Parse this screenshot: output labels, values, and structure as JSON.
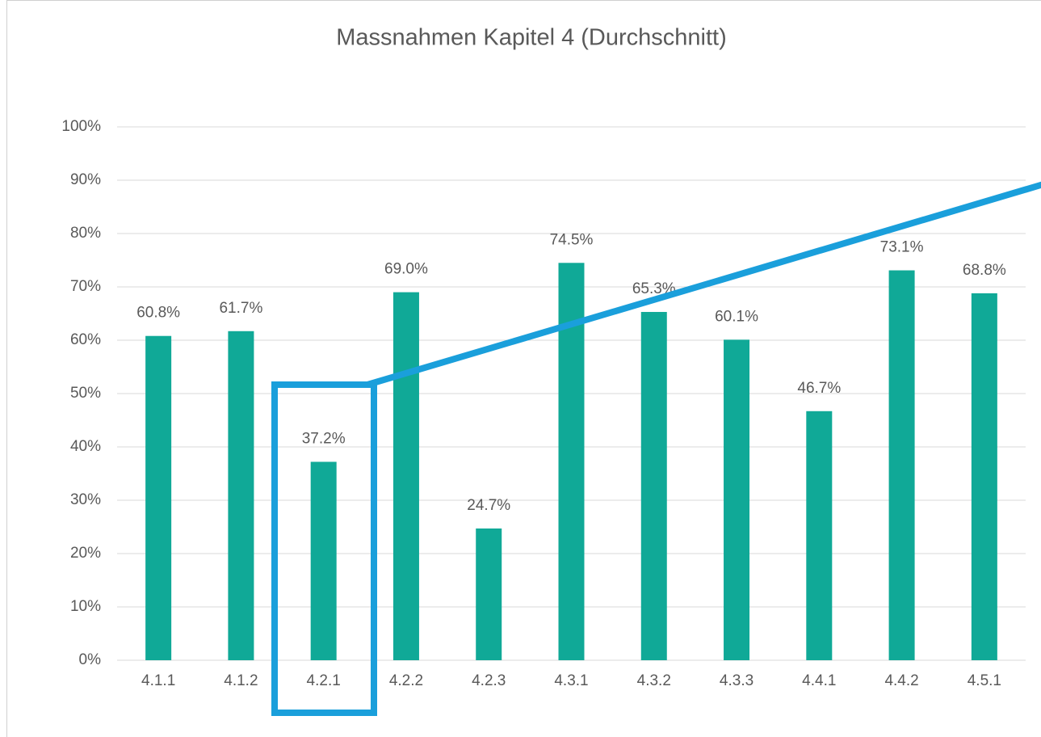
{
  "chart_data": {
    "type": "bar",
    "title": "Massnahmen Kapitel 4 (Durchschnitt)",
    "categories": [
      "4.1.1",
      "4.1.2",
      "4.2.1",
      "4.2.2",
      "4.2.3",
      "4.3.1",
      "4.3.2",
      "4.3.3",
      "4.4.1",
      "4.4.2",
      "4.5.1"
    ],
    "values": [
      60.8,
      61.7,
      37.2,
      69.0,
      24.7,
      74.5,
      65.3,
      60.1,
      46.7,
      73.1,
      68.8
    ],
    "value_labels": [
      "60.8%",
      "61.7%",
      "37.2%",
      "69.0%",
      "24.7%",
      "74.5%",
      "65.3%",
      "60.1%",
      "46.7%",
      "73.1%",
      "68.8%"
    ],
    "color": "#10a997",
    "ylim": [
      0,
      100
    ],
    "yticks": [
      {
        "value": 0,
        "label": "0%"
      },
      {
        "value": 10,
        "label": "10%"
      },
      {
        "value": 20,
        "label": "20%"
      },
      {
        "value": 30,
        "label": "30%"
      },
      {
        "value": 40,
        "label": "40%"
      },
      {
        "value": 50,
        "label": "50%"
      },
      {
        "value": 60,
        "label": "60%"
      },
      {
        "value": 70,
        "label": "70%"
      },
      {
        "value": 80,
        "label": "80%"
      },
      {
        "value": 90,
        "label": "90%"
      },
      {
        "value": 100,
        "label": "100%"
      }
    ],
    "grid": true
  }
}
